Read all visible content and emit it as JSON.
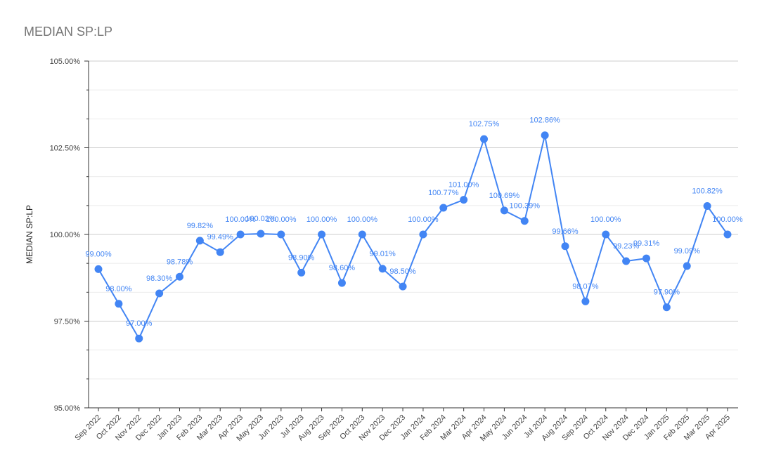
{
  "chart_data": {
    "type": "line",
    "title": "MEDIAN SP:LP",
    "xlabel": "",
    "ylabel": "MEDIAN SP:LP",
    "ylim": [
      95,
      105
    ],
    "y_ticks": [
      "95.00%",
      "97.50%",
      "100.00%",
      "102.50%",
      "105.00%"
    ],
    "grid": true,
    "legend": "none",
    "color": "#4285f4",
    "categories": [
      "Sep 2022",
      "Oct 2022",
      "Nov 2022",
      "Dec 2022",
      "Jan 2023",
      "Feb 2023",
      "Mar 2023",
      "Apr 2023",
      "May 2023",
      "Jun 2023",
      "Jul 2023",
      "Aug 2023",
      "Sep 2023",
      "Oct 2023",
      "Nov 2023",
      "Dec 2023",
      "Jan 2024",
      "Feb 2024",
      "Mar 2024",
      "Apr 2024",
      "May 2024",
      "Jun 2024",
      "Jul 2024",
      "Aug 2024",
      "Sep 2024",
      "Oct 2024",
      "Nov 2024",
      "Dec 2024",
      "Jan 2025",
      "Feb 2025",
      "Mar 2025",
      "Apr 2025"
    ],
    "series": [
      {
        "values": [
          99.0,
          98.0,
          97.0,
          98.3,
          98.78,
          99.82,
          99.49,
          100.0,
          100.02,
          100.0,
          98.9,
          100.0,
          98.6,
          100.0,
          99.01,
          98.5,
          100.0,
          100.77,
          101.0,
          102.75,
          100.69,
          100.39,
          102.86,
          99.66,
          98.07,
          100.0,
          99.23,
          99.31,
          97.9,
          99.09,
          100.82,
          100.0
        ],
        "labels": [
          "99.00%",
          "98.00%",
          "97.00%",
          "98.30%",
          "98.78%",
          "99.82%",
          "99.49%",
          "100.00%",
          "100.02%",
          "100.00%",
          "98.90%",
          "100.00%",
          "98.60%",
          "100.00%",
          "99.01%",
          "98.50%",
          "100.00%",
          "100.77%",
          "101.00%",
          "102.75%",
          "100.69%",
          "100.39%",
          "102.86%",
          "99.66%",
          "98.07%",
          "100.00%",
          "99.23%",
          "99.31%",
          "97.90%",
          "99.09%",
          "100.82%",
          "100.00%"
        ]
      }
    ]
  }
}
